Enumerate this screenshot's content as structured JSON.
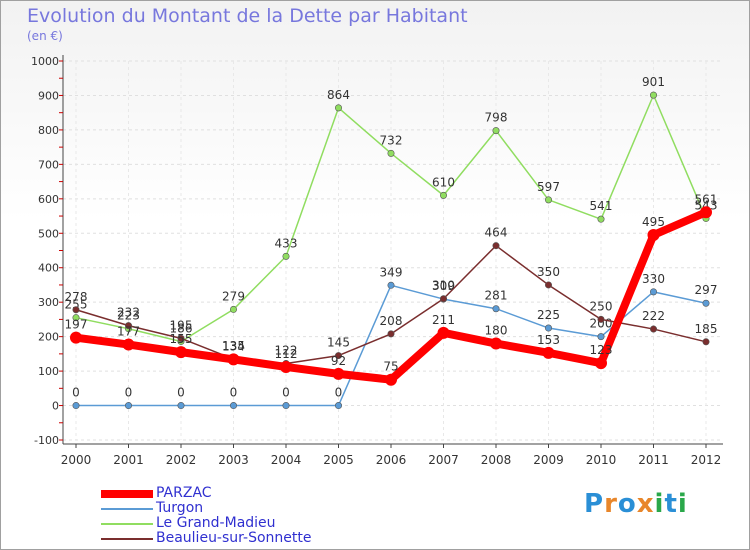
{
  "chart_data": {
    "type": "line",
    "title": "Evolution du Montant de la Dette par Habitant",
    "ylabel": "(en €)",
    "xlabel": "",
    "categories": [
      "2000",
      "2001",
      "2002",
      "2003",
      "2004",
      "2005",
      "2006",
      "2007",
      "2008",
      "2009",
      "2010",
      "2011",
      "2012"
    ],
    "ylim": [
      -100,
      1000
    ],
    "yticks": [
      -100,
      0,
      100,
      200,
      300,
      400,
      500,
      600,
      700,
      800,
      900,
      1000
    ],
    "grid": true,
    "legend_position": "bottom-left",
    "series": [
      {
        "name": "PARZAC",
        "color": "#ff0000",
        "values": [
          197,
          177,
          155,
          134,
          112,
          92,
          75,
          211,
          180,
          153,
          123,
          495,
          561
        ]
      },
      {
        "name": "Turgon",
        "color": "#5b9bd5",
        "values": [
          0,
          0,
          0,
          0,
          0,
          0,
          349,
          309,
          281,
          225,
          200,
          330,
          297
        ]
      },
      {
        "name": "Le Grand-Madieu",
        "color": "#90dd60",
        "values": [
          255,
          223,
          186,
          279,
          433,
          864,
          732,
          610,
          798,
          597,
          541,
          901,
          543
        ]
      },
      {
        "name": "Beaulieu-sur-Sonnette",
        "color": "#7a2e2e",
        "values": [
          278,
          232,
          195,
          135,
          122,
          145,
          208,
          310,
          464,
          350,
          250,
          222,
          185
        ]
      }
    ]
  },
  "logo": {
    "letters": [
      "P",
      "r",
      "o",
      "x",
      "i",
      "t",
      "i"
    ],
    "colors": [
      "#2a8fd6",
      "#e8862a",
      "#2a8fd6",
      "#e8862a",
      "#2aa84a",
      "#2a8fd6",
      "#2aa84a"
    ]
  }
}
